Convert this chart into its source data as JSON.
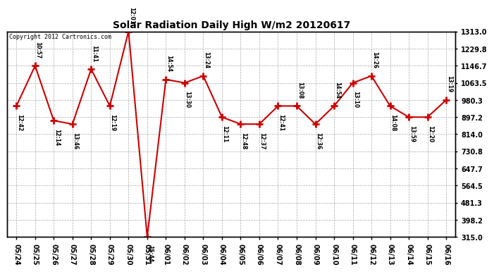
{
  "title": "Solar Radiation Daily High W/m2 20120617",
  "copyright": "Copyright 2012 Cartronics.com",
  "x_labels": [
    "05/24",
    "05/25",
    "05/26",
    "05/27",
    "05/28",
    "05/29",
    "05/30",
    "05/31",
    "06/01",
    "06/02",
    "06/03",
    "06/04",
    "06/05",
    "06/06",
    "06/07",
    "06/08",
    "06/09",
    "06/10",
    "06/11",
    "06/12",
    "06/13",
    "06/14",
    "06/15",
    "06/16"
  ],
  "y_values": [
    951,
    1146,
    880,
    863,
    1130,
    951,
    1313,
    315,
    1080,
    1063,
    1097,
    897,
    863,
    863,
    951,
    951,
    863,
    951,
    1063,
    1097,
    951,
    897,
    897,
    980
  ],
  "annotations": [
    "12:42",
    "10:57",
    "12:14",
    "13:46",
    "11:41",
    "12:19",
    "12:01",
    "15:44",
    "14:54",
    "13:30",
    "13:24",
    "12:11",
    "12:48",
    "12:37",
    "12:41",
    "13:08",
    "12:36",
    "14:54",
    "13:10",
    "14:26",
    "14:08",
    "13:59",
    "12:20",
    "13:19"
  ],
  "ann_above": [
    false,
    true,
    false,
    false,
    true,
    false,
    true,
    false,
    true,
    false,
    true,
    false,
    false,
    false,
    false,
    true,
    false,
    true,
    false,
    true,
    false,
    false,
    false,
    true
  ],
  "line_color": "#cc0000",
  "marker_color": "#cc0000",
  "bg_color": "#ffffff",
  "plot_bg_color": "#ffffff",
  "grid_color": "#aaaaaa",
  "y_min": 315.0,
  "y_max": 1313.0,
  "y_ticks": [
    315.0,
    398.2,
    481.3,
    564.5,
    647.7,
    730.8,
    814.0,
    897.2,
    980.3,
    1063.5,
    1146.7,
    1229.8,
    1313.0
  ]
}
